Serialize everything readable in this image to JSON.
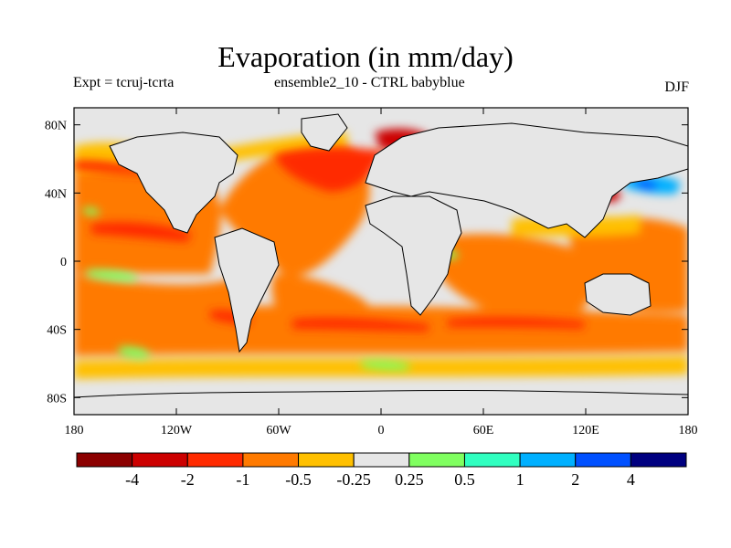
{
  "chart_data": {
    "type": "heatmap",
    "title": "Evaporation (in mm/day)",
    "experiment_label": "Expt = tcruj-tcrta",
    "subtitle": "ensemble2_10 - CTRL babyblue",
    "season": "DJF",
    "xlabel": "",
    "ylabel": "",
    "xlim": [
      -180,
      180
    ],
    "ylim": [
      -90,
      90
    ],
    "x_ticks": [
      {
        "value": -180,
        "label": "180"
      },
      {
        "value": -120,
        "label": "120W"
      },
      {
        "value": -60,
        "label": "60W"
      },
      {
        "value": 0,
        "label": "0"
      },
      {
        "value": 60,
        "label": "60E"
      },
      {
        "value": 120,
        "label": "120E"
      },
      {
        "value": 180,
        "label": "180"
      }
    ],
    "y_ticks": [
      {
        "value": 80,
        "label": "80N"
      },
      {
        "value": 40,
        "label": "40N"
      },
      {
        "value": 0,
        "label": "0"
      },
      {
        "value": -40,
        "label": "40S"
      },
      {
        "value": -80,
        "label": "80S"
      }
    ],
    "colorbar": {
      "colors": [
        "#8b0000",
        "#cc0000",
        "#ff2a00",
        "#ff7a00",
        "#ffc000",
        "#e6e6e6",
        "#80ff60",
        "#30ffc0",
        "#00b0ff",
        "#0050ff",
        "#000080"
      ],
      "levels": [
        {
          "value": -4,
          "label": "-4"
        },
        {
          "value": -2,
          "label": "-2"
        },
        {
          "value": -1,
          "label": "-1"
        },
        {
          "value": -0.5,
          "label": "-0.5"
        },
        {
          "value": -0.25,
          "label": "-0.25"
        },
        {
          "value": 0.25,
          "label": "0.25"
        },
        {
          "value": 0.5,
          "label": "0.5"
        },
        {
          "value": 1,
          "label": "1"
        },
        {
          "value": 2,
          "label": "2"
        },
        {
          "value": 4,
          "label": "4"
        }
      ]
    },
    "regions": [
      {
        "name": "north-atlantic-red-core",
        "lon": [
          -30,
          5
        ],
        "lat": [
          45,
          65
        ],
        "value": -2.5
      },
      {
        "name": "norwegian-sea-dark-red",
        "lon": [
          0,
          20
        ],
        "lat": [
          68,
          78
        ],
        "value": -3.5
      },
      {
        "name": "north-atlantic-orange",
        "lon": [
          -60,
          0
        ],
        "lat": [
          15,
          60
        ],
        "value": -0.7
      },
      {
        "name": "north-pacific-orange",
        "lon": [
          -180,
          -110
        ],
        "lat": [
          20,
          50
        ],
        "value": -0.6
      },
      {
        "name": "tropical-pacific-red",
        "lon": [
          -170,
          -140
        ],
        "lat": [
          10,
          20
        ],
        "value": -1.3
      },
      {
        "name": "tropical-pacific-red-band",
        "lon": [
          -175,
          -110
        ],
        "lat": [
          5,
          15
        ],
        "value": -1.2
      },
      {
        "name": "kuroshio-blue",
        "lon": [
          140,
          165
        ],
        "lat": [
          35,
          45
        ],
        "value": 1.5
      },
      {
        "name": "japan-sea-red",
        "lon": [
          130,
          145
        ],
        "lat": [
          35,
          45
        ],
        "value": -2
      },
      {
        "name": "indian-ocean-orange",
        "lon": [
          50,
          110
        ],
        "lat": [
          -30,
          10
        ],
        "value": -0.6
      },
      {
        "name": "southern-ocean-orange",
        "lon": [
          -180,
          180
        ],
        "lat": [
          -50,
          -30
        ],
        "value": -0.5
      },
      {
        "name": "south-atlantic-red-streak",
        "lon": [
          -40,
          30
        ],
        "lat": [
          -45,
          -35
        ],
        "value": -1.2
      },
      {
        "name": "pacific-green-patch",
        "lon": [
          -170,
          -140
        ],
        "lat": [
          -10,
          -5
        ],
        "value": 0.3
      },
      {
        "name": "south-pacific-green-patch",
        "lon": [
          -160,
          -140
        ],
        "lat": [
          -55,
          -50
        ],
        "value": 0.3
      },
      {
        "name": "africa-green-patch",
        "lon": [
          30,
          45
        ],
        "lat": [
          0,
          5
        ],
        "value": 0.3
      },
      {
        "name": "south-atlantic-green-patch",
        "lon": [
          -10,
          20
        ],
        "lat": [
          -60,
          -55
        ],
        "value": 0.3
      }
    ]
  }
}
